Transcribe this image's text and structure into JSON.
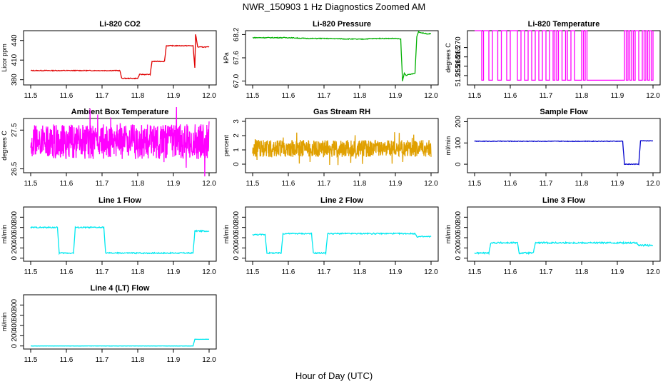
{
  "figure": {
    "title": "NWR_150903  1 Hz Diagnostics Zoomed AM",
    "xlabel": "Hour of Day (UTC)"
  },
  "chart_data": [
    {
      "type": "line",
      "title": "Li-820 CO2",
      "ylabel": "Licor ppm",
      "color": "#e00000",
      "xlim": [
        11.48,
        12.02
      ],
      "ylim": [
        372,
        455
      ],
      "xticks": [
        11.5,
        11.6,
        11.7,
        11.8,
        11.9,
        12.0
      ],
      "yticks": [
        380,
        410,
        440
      ],
      "series": [
        {
          "name": "Li-820 CO2",
          "style": "step",
          "noise": 0.6,
          "x": [
            11.5,
            11.75,
            11.755,
            11.8,
            11.805,
            11.835,
            11.84,
            11.875,
            11.88,
            11.955,
            11.96,
            11.962,
            11.965,
            11.968,
            12.0
          ],
          "y": [
            394,
            394,
            382,
            382,
            388,
            388,
            408,
            408,
            432,
            432,
            398,
            450,
            440,
            430,
            430
          ]
        }
      ]
    },
    {
      "type": "line",
      "title": "Li-820 Pressure",
      "ylabel": "kPa",
      "color": "#00b000",
      "xlim": [
        11.48,
        12.02
      ],
      "ylim": [
        66.9,
        68.3
      ],
      "xticks": [
        11.5,
        11.6,
        11.7,
        11.8,
        11.9,
        12.0
      ],
      "yticks": [
        67.0,
        67.6,
        68.2
      ],
      "series": [
        {
          "name": "Li-820 Pressure",
          "style": "line",
          "noise": 0.01,
          "x": [
            11.5,
            11.6,
            11.65,
            11.7,
            11.8,
            11.85,
            11.9,
            11.915,
            11.92,
            11.925,
            11.93,
            11.955,
            11.96,
            11.965,
            11.97,
            11.99,
            12.0
          ],
          "y": [
            68.12,
            68.12,
            68.1,
            68.1,
            68.08,
            68.1,
            68.1,
            68.08,
            67.0,
            67.2,
            67.15,
            67.2,
            68.15,
            68.28,
            68.25,
            68.22,
            68.22
          ]
        }
      ]
    },
    {
      "type": "line",
      "title": "Li-820 Temperature",
      "ylabel": "degrees C",
      "color": "#ff00ff",
      "xlim": [
        11.48,
        12.02
      ],
      "ylim": [
        51.25,
        51.279
      ],
      "xticks": [
        11.5,
        11.6,
        11.7,
        11.8,
        11.9,
        12.0
      ],
      "yticks": [
        51.255,
        51.26,
        51.265,
        51.27
      ],
      "series": [
        {
          "name": "Li-820 Temperature",
          "style": "binary",
          "low": 51.2525,
          "high": 51.279,
          "x": [
            11.5,
            11.52,
            11.525,
            11.54,
            11.55,
            11.565,
            11.575,
            11.59,
            11.6,
            11.62,
            11.63,
            11.64,
            11.65,
            11.66,
            11.67,
            11.68,
            11.69,
            11.7,
            11.71,
            11.72,
            11.725,
            11.73,
            11.735,
            11.745,
            11.755,
            11.76,
            11.77,
            11.78,
            11.8,
            11.805,
            11.81,
            11.815,
            11.92,
            11.925,
            11.93,
            11.935,
            11.94,
            11.945,
            11.95,
            11.96,
            11.97,
            11.975,
            11.98,
            11.985,
            11.99,
            11.995,
            12.0
          ],
          "state": [
            1,
            0,
            1,
            0,
            1,
            0,
            1,
            0,
            1,
            0,
            1,
            0,
            1,
            0,
            1,
            0,
            1,
            0,
            1,
            0,
            1,
            0,
            1,
            0,
            1,
            0,
            1,
            0,
            1,
            0,
            1,
            0,
            1,
            0,
            1,
            0,
            1,
            0,
            1,
            0,
            1,
            0,
            1,
            0,
            1,
            0,
            1
          ]
        }
      ]
    },
    {
      "type": "line",
      "title": "Ambient Box Temperature",
      "ylabel": "degrees C",
      "color": "#ff00ff",
      "xlim": [
        11.48,
        12.02
      ],
      "ylim": [
        26.4,
        27.8
      ],
      "xticks": [
        11.5,
        11.6,
        11.7,
        11.8,
        11.9,
        12.0
      ],
      "yticks": [
        26.5,
        27.5
      ],
      "series": [
        {
          "name": "Ambient Box Temperature",
          "style": "noise",
          "mean": 27.2,
          "amp": 0.45,
          "x": [
            11.5,
            12.0
          ],
          "y": [
            27.2,
            27.2
          ]
        }
      ]
    },
    {
      "type": "line",
      "title": "Gas Stream RH",
      "ylabel": "percent",
      "color": "#e0a000",
      "xlim": [
        11.48,
        12.02
      ],
      "ylim": [
        -0.6,
        3.2
      ],
      "xticks": [
        11.5,
        11.6,
        11.7,
        11.8,
        11.9,
        12.0
      ],
      "yticks": [
        0,
        1,
        2,
        3
      ],
      "series": [
        {
          "name": "Gas Stream RH",
          "style": "noise",
          "mean": 1.1,
          "amp": 0.6,
          "x": [
            11.5,
            12.0
          ],
          "y": [
            1.1,
            1.1
          ]
        }
      ]
    },
    {
      "type": "line",
      "title": "Sample Flow",
      "ylabel": "ml/min",
      "color": "#0000cc",
      "xlim": [
        11.48,
        12.02
      ],
      "ylim": [
        -40,
        215
      ],
      "xticks": [
        11.5,
        11.6,
        11.7,
        11.8,
        11.9,
        12.0
      ],
      "yticks": [
        0,
        100,
        200
      ],
      "series": [
        {
          "name": "Sample Flow",
          "style": "step",
          "noise": 1.5,
          "x": [
            11.5,
            11.915,
            11.92,
            11.96,
            11.965,
            12.0
          ],
          "y": [
            108,
            108,
            0,
            0,
            110,
            110
          ]
        }
      ]
    },
    {
      "type": "line",
      "title": "Line 1 Flow",
      "ylabel": "ml/min",
      "color": "#00e8f0",
      "xlim": [
        11.48,
        12.02
      ],
      "ylim": [
        -60,
        1000
      ],
      "xticks": [
        11.5,
        11.6,
        11.7,
        11.8,
        11.9,
        12.0
      ],
      "yticks": [
        0,
        200,
        400,
        600,
        800
      ],
      "series": [
        {
          "name": "Line 1 Flow",
          "style": "step",
          "noise": 12,
          "x": [
            11.5,
            11.575,
            11.58,
            11.62,
            11.625,
            11.705,
            11.71,
            11.955,
            11.96,
            12.0
          ],
          "y": [
            600,
            600,
            100,
            100,
            600,
            600,
            100,
            100,
            530,
            530
          ]
        }
      ]
    },
    {
      "type": "line",
      "title": "Line 2 Flow",
      "ylabel": "ml/min",
      "color": "#00e8f0",
      "xlim": [
        11.48,
        12.02
      ],
      "ylim": [
        -60,
        1000
      ],
      "xticks": [
        11.5,
        11.6,
        11.7,
        11.8,
        11.9,
        12.0
      ],
      "yticks": [
        0,
        200,
        400,
        600,
        800
      ],
      "series": [
        {
          "name": "Line 2 Flow",
          "style": "step",
          "noise": 12,
          "x": [
            11.5,
            11.535,
            11.54,
            11.58,
            11.585,
            11.665,
            11.67,
            11.705,
            11.71,
            11.955,
            11.96,
            12.0
          ],
          "y": [
            460,
            460,
            100,
            100,
            480,
            480,
            100,
            100,
            480,
            480,
            420,
            420
          ]
        }
      ]
    },
    {
      "type": "line",
      "title": "Line 3 Flow",
      "ylabel": "ml/min",
      "color": "#00e8f0",
      "xlim": [
        11.48,
        12.02
      ],
      "ylim": [
        -60,
        1000
      ],
      "xticks": [
        11.5,
        11.6,
        11.7,
        11.8,
        11.9,
        12.0
      ],
      "yticks": [
        0,
        200,
        400,
        600,
        800
      ],
      "series": [
        {
          "name": "Line 3 Flow",
          "style": "step",
          "noise": 15,
          "x": [
            11.5,
            11.54,
            11.545,
            11.62,
            11.625,
            11.665,
            11.67,
            11.955,
            11.96,
            12.0
          ],
          "y": [
            100,
            100,
            300,
            300,
            100,
            100,
            300,
            300,
            250,
            250
          ]
        }
      ]
    },
    {
      "type": "line",
      "title": "Line 4 (LT) Flow",
      "ylabel": "ml/min",
      "color": "#00e8f0",
      "xlim": [
        11.48,
        12.02
      ],
      "ylim": [
        -60,
        1000
      ],
      "xticks": [
        11.5,
        11.6,
        11.7,
        11.8,
        11.9,
        12.0
      ],
      "yticks": [
        0,
        200,
        400,
        600,
        800
      ],
      "series": [
        {
          "name": "Line 4 (LT) Flow",
          "style": "step",
          "noise": 2,
          "x": [
            11.5,
            11.955,
            11.96,
            12.0
          ],
          "y": [
            0,
            0,
            130,
            130
          ]
        }
      ]
    }
  ]
}
